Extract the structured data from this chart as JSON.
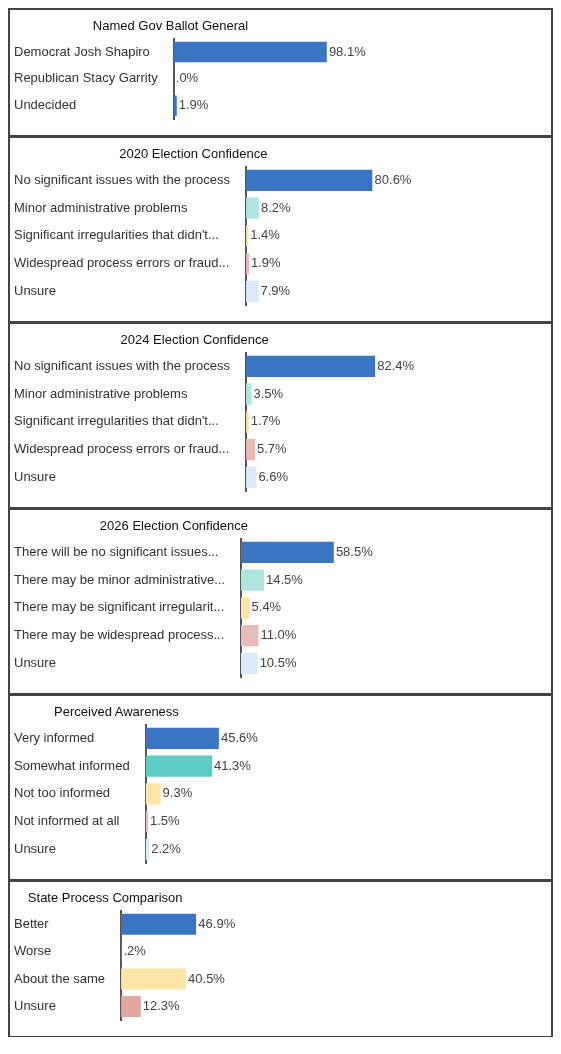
{
  "chart_data": [
    {
      "type": "bar",
      "orientation": "horizontal",
      "title": "Named Gov Ballot General",
      "categories": [
        "Democrat Josh Shapiro",
        "Republican Stacy Garrity",
        "Undecided"
      ],
      "values": [
        98.1,
        0,
        1.9
      ],
      "value_labels": [
        "98.1%",
        ".0%",
        "1.9%"
      ],
      "colors": [
        "#3a75c4",
        "#3a75c4",
        "#3a75c4"
      ],
      "grid": false,
      "legend": false
    },
    {
      "type": "bar",
      "orientation": "horizontal",
      "title": "2020 Election Confidence",
      "categories": [
        "No significant issues with the process",
        "Minor administrative problems",
        "Significant irregularities that didn't...",
        "Widespread process errors or fraud...",
        "Unsure"
      ],
      "values": [
        80.6,
        8.2,
        1.4,
        1.9,
        7.9
      ],
      "value_labels": [
        "80.6%",
        "8.2%",
        "1.4%",
        "1.9%",
        "7.9%"
      ],
      "colors": [
        "#3a75c4",
        "#aee6df",
        "#f6e3a8",
        "#e8b8b4",
        "#dce9f9"
      ],
      "grid": false,
      "legend": false
    },
    {
      "type": "bar",
      "orientation": "horizontal",
      "title": "2024 Election Confidence",
      "categories": [
        "No significant issues with the process",
        "Minor administrative problems",
        "Significant irregularities that didn't...",
        "Widespread process errors or fraud...",
        "Unsure"
      ],
      "values": [
        82.4,
        3.5,
        1.7,
        5.7,
        6.6
      ],
      "value_labels": [
        "82.4%",
        "3.5%",
        "1.7%",
        "5.7%",
        "6.6%"
      ],
      "colors": [
        "#3a75c4",
        "#aee6df",
        "#f6e3a8",
        "#e8b8b4",
        "#dce9f9"
      ],
      "grid": false,
      "legend": false
    },
    {
      "type": "bar",
      "orientation": "horizontal",
      "title": "2026 Election Confidence",
      "categories": [
        "There will be no significant issues...",
        "There may be minor administrative...",
        "There may be significant irregularit...",
        "There may be widespread process...",
        "Unsure"
      ],
      "values": [
        58.5,
        14.5,
        5.4,
        11.0,
        10.5
      ],
      "value_labels": [
        "58.5%",
        "14.5%",
        "5.4%",
        "11.0%",
        "10.5%"
      ],
      "colors": [
        "#3a75c4",
        "#aee6df",
        "#f9e6a8",
        "#e8bcb8",
        "#dce9f9"
      ],
      "grid": false,
      "legend": false
    },
    {
      "type": "bar",
      "orientation": "horizontal",
      "title": "Perceived Awareness",
      "categories": [
        "Very informed",
        "Somewhat informed",
        "Not too informed",
        "Not informed at all",
        "Unsure"
      ],
      "values": [
        45.6,
        41.3,
        9.3,
        1.5,
        2.2
      ],
      "value_labels": [
        "45.6%",
        "41.3%",
        "9.3%",
        "1.5%",
        "2.2%"
      ],
      "colors": [
        "#3a75c4",
        "#5ccdc3",
        "#fbe6a8",
        "#e8b8b4",
        "#dce9f9"
      ],
      "grid": false,
      "legend": false
    },
    {
      "type": "bar",
      "orientation": "horizontal",
      "title": "State Process Comparison",
      "categories": [
        "Better",
        "Worse",
        "About the same",
        "Unsure"
      ],
      "values": [
        46.9,
        0.2,
        40.5,
        12.3
      ],
      "value_labels": [
        "46.9%",
        ".2%",
        "40.5%",
        "12.3%"
      ],
      "colors": [
        "#3a75c4",
        "#5ccdc3",
        "#fbe6a8",
        "#e0a8a0"
      ],
      "grid": false,
      "legend": false
    }
  ]
}
